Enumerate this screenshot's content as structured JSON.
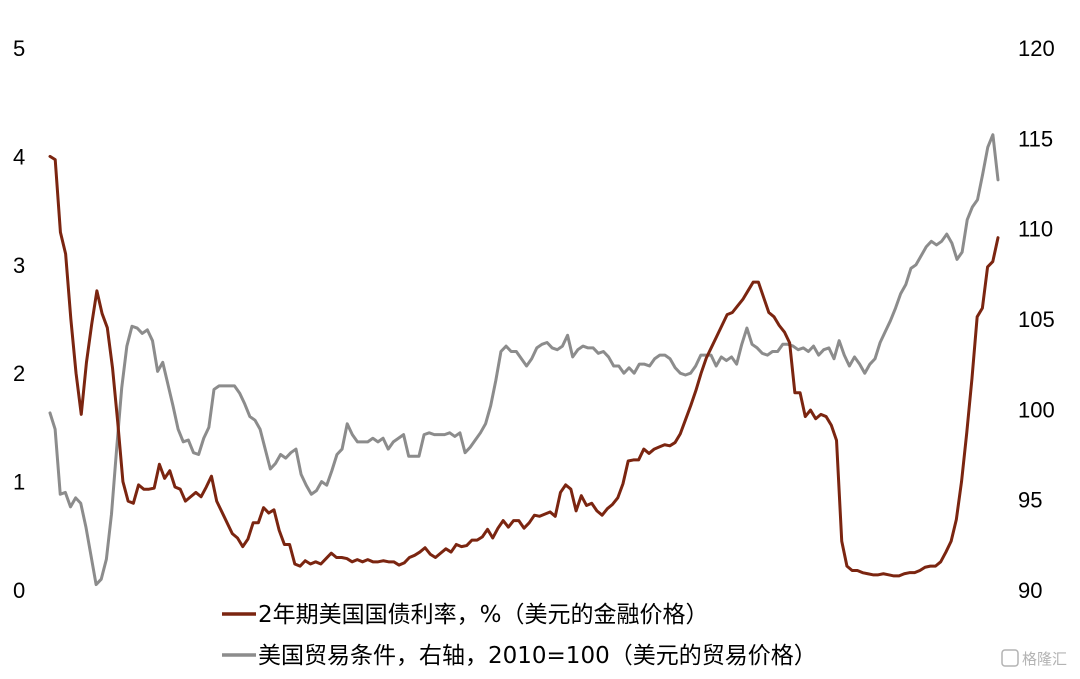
{
  "chart_data": {
    "type": "line",
    "left_axis": {
      "range": [
        0,
        5
      ],
      "ticks": [
        "0",
        "1",
        "2",
        "3",
        "4",
        "5"
      ]
    },
    "right_axis": {
      "range": [
        90,
        120
      ],
      "ticks": [
        "90",
        "95",
        "100",
        "105",
        "110",
        "115",
        "120"
      ]
    },
    "grid": false,
    "legend_position": "bottom",
    "series": [
      {
        "name": "2年期美国国债利率，%（美元的金融价格）",
        "axis": "left",
        "color": "#7b2510",
        "values": [
          4.0,
          3.97,
          3.3,
          3.1,
          2.5,
          2.0,
          1.62,
          2.1,
          2.45,
          2.76,
          2.55,
          2.42,
          2.05,
          1.55,
          1.0,
          0.82,
          0.8,
          0.97,
          0.93,
          0.93,
          0.94,
          1.16,
          1.03,
          1.1,
          0.95,
          0.93,
          0.82,
          0.86,
          0.9,
          0.86,
          0.95,
          1.05,
          0.82,
          0.72,
          0.62,
          0.52,
          0.48,
          0.4,
          0.47,
          0.62,
          0.62,
          0.76,
          0.71,
          0.74,
          0.55,
          0.42,
          0.42,
          0.24,
          0.22,
          0.27,
          0.24,
          0.26,
          0.24,
          0.29,
          0.34,
          0.3,
          0.3,
          0.29,
          0.26,
          0.28,
          0.26,
          0.28,
          0.26,
          0.26,
          0.27,
          0.26,
          0.26,
          0.23,
          0.25,
          0.3,
          0.32,
          0.35,
          0.39,
          0.33,
          0.3,
          0.34,
          0.38,
          0.35,
          0.42,
          0.4,
          0.41,
          0.46,
          0.46,
          0.49,
          0.56,
          0.48,
          0.57,
          0.64,
          0.58,
          0.64,
          0.64,
          0.57,
          0.62,
          0.69,
          0.68,
          0.7,
          0.72,
          0.68,
          0.9,
          0.97,
          0.93,
          0.73,
          0.87,
          0.78,
          0.8,
          0.73,
          0.69,
          0.75,
          0.79,
          0.85,
          0.98,
          1.19,
          1.2,
          1.2,
          1.3,
          1.26,
          1.3,
          1.32,
          1.34,
          1.33,
          1.36,
          1.44,
          1.57,
          1.7,
          1.84,
          2.0,
          2.14,
          2.24,
          2.34,
          2.44,
          2.54,
          2.56,
          2.62,
          2.68,
          2.76,
          2.84,
          2.84,
          2.7,
          2.56,
          2.52,
          2.44,
          2.38,
          2.28,
          1.82,
          1.82,
          1.6,
          1.66,
          1.58,
          1.62,
          1.6,
          1.52,
          1.38,
          0.45,
          0.22,
          0.18,
          0.18,
          0.16,
          0.15,
          0.14,
          0.14,
          0.15,
          0.14,
          0.13,
          0.13,
          0.15,
          0.16,
          0.16,
          0.18,
          0.21,
          0.22,
          0.22,
          0.26,
          0.35,
          0.45,
          0.65,
          1.0,
          1.45,
          1.95,
          2.52,
          2.6,
          2.98,
          3.03,
          3.25
        ]
      },
      {
        "name": "美国贸易条件，右轴，2010=100（美元的贸易价格）",
        "axis": "right",
        "color": "#8c8c8c",
        "values": [
          99.8,
          98.9,
          95.3,
          95.4,
          94.6,
          95.1,
          94.8,
          93.5,
          91.9,
          90.3,
          90.6,
          91.7,
          94.2,
          97.8,
          101.2,
          103.5,
          104.6,
          104.5,
          104.2,
          104.4,
          103.8,
          102.1,
          102.6,
          101.4,
          100.2,
          98.9,
          98.2,
          98.3,
          97.6,
          97.5,
          98.4,
          99.0,
          101.1,
          101.3,
          101.3,
          101.3,
          101.3,
          100.9,
          100.3,
          99.6,
          99.4,
          98.9,
          97.8,
          96.7,
          97.0,
          97.5,
          97.3,
          97.6,
          97.8,
          96.4,
          95.8,
          95.3,
          95.5,
          96.0,
          95.8,
          96.6,
          97.5,
          97.8,
          99.2,
          98.6,
          98.2,
          98.2,
          98.2,
          98.4,
          98.2,
          98.4,
          97.8,
          98.2,
          98.4,
          98.6,
          97.4,
          97.4,
          97.4,
          98.6,
          98.7,
          98.6,
          98.6,
          98.6,
          98.7,
          98.5,
          98.7,
          97.6,
          97.9,
          98.3,
          98.7,
          99.2,
          100.2,
          101.6,
          103.2,
          103.5,
          103.2,
          103.2,
          102.8,
          102.4,
          102.8,
          103.4,
          103.6,
          103.7,
          103.4,
          103.3,
          103.5,
          104.1,
          102.9,
          103.3,
          103.5,
          103.4,
          103.4,
          103.1,
          103.2,
          102.9,
          102.4,
          102.4,
          102.0,
          102.3,
          102.0,
          102.5,
          102.5,
          102.4,
          102.8,
          103.0,
          103.0,
          102.8,
          102.3,
          102.0,
          101.9,
          102.0,
          102.4,
          103.0,
          103.0,
          103.0,
          102.4,
          102.9,
          102.7,
          102.9,
          102.5,
          103.6,
          104.5,
          103.6,
          103.4,
          103.1,
          103.0,
          103.2,
          103.2,
          103.6,
          103.6,
          103.5,
          103.3,
          103.4,
          103.2,
          103.5,
          103.0,
          103.3,
          103.4,
          102.8,
          103.8,
          103.0,
          102.4,
          102.9,
          102.5,
          102.0,
          102.5,
          102.8,
          103.7,
          104.3,
          104.9,
          105.6,
          106.4,
          106.9,
          107.8,
          108.0,
          108.5,
          109.0,
          109.3,
          109.1,
          109.3,
          109.7,
          109.2,
          108.3,
          108.7,
          110.5,
          111.2,
          111.6,
          113.0,
          114.5,
          115.2,
          112.7
        ]
      }
    ]
  },
  "watermark": "格隆汇"
}
